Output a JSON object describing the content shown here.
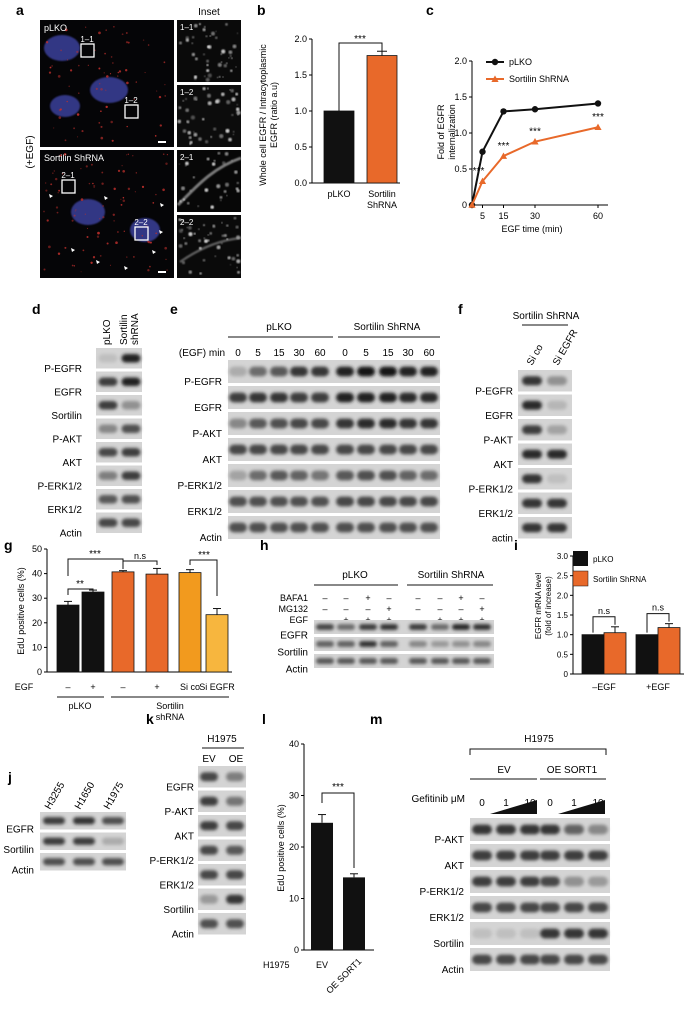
{
  "panel_letters": {
    "a": "a",
    "b": "b",
    "c": "c",
    "d": "d",
    "e": "e",
    "f": "f",
    "g": "g",
    "h": "h",
    "i": "i",
    "j": "j",
    "k": "k",
    "l": "l",
    "m": "m"
  },
  "panel_a": {
    "inset_title": "Inset",
    "treatment": "(+EGF)",
    "top_label": "pLKO",
    "bottom_label": "Sortilin ShRNA",
    "boxes": [
      "1–1",
      "1–2",
      "2–1",
      "2–2"
    ],
    "insets": [
      "1–1",
      "1–2",
      "2–1",
      "2–2"
    ]
  },
  "chart_data": [
    {
      "id": "b",
      "type": "bar",
      "categories": [
        "pLKO",
        "Sortilin\nShRNA"
      ],
      "category_lines": [
        [
          "pLKO"
        ],
        [
          "Sortilin",
          "ShRNA"
        ]
      ],
      "values": [
        1.0,
        1.77
      ],
      "errors": [
        0,
        0.06
      ],
      "colors": [
        "#111111",
        "#e8692a"
      ],
      "ylabel_lines": [
        "Whole cell EGFR / Intracytoplasmic",
        "EGFR (ratio a.u)"
      ],
      "ylim": [
        0,
        2.0
      ],
      "yticks": [
        "0.0",
        "0.5",
        "1.0",
        "1.5",
        "2.0"
      ],
      "significance": "***"
    },
    {
      "id": "c",
      "type": "line",
      "x": [
        0,
        5,
        15,
        30,
        60
      ],
      "xticks": [
        "5",
        "15",
        "30",
        "60"
      ],
      "xlabel": "EGF time (min)",
      "ylabel_lines": [
        "Fold of EGFR",
        "internalization"
      ],
      "ylim": [
        0,
        2.0
      ],
      "yticks": [
        "0",
        "0.5",
        "1.0",
        "1.5",
        "2.0"
      ],
      "series": [
        {
          "name": "pLKO",
          "values": [
            0,
            0.74,
            1.3,
            1.33,
            1.41
          ],
          "color": "#111111",
          "marker": "circle"
        },
        {
          "name": "Sortilin ShRNA",
          "values": [
            0,
            0.33,
            0.68,
            0.88,
            1.08
          ],
          "color": "#e8692a",
          "marker": "triangle"
        }
      ],
      "significance": [
        "***",
        "***",
        "***",
        "***"
      ],
      "legend_position": "top-left"
    },
    {
      "id": "g",
      "type": "bar",
      "categories": [
        "–",
        "+",
        "–",
        "+",
        "Si co",
        "Si EGFR"
      ],
      "values": [
        27.2,
        32.5,
        40.7,
        39.8,
        40.4,
        23.3
      ],
      "errors": [
        1.5,
        0.8,
        0.5,
        2.3,
        1.2,
        2.5
      ],
      "colors": [
        "#111111",
        "#111111",
        "#e8692a",
        "#e8692a",
        "#f29a1e",
        "#f7b63e"
      ],
      "ylabel": "EdU positive cells (%)",
      "ylim": [
        0,
        50
      ],
      "yticks": [
        "0",
        "10",
        "20",
        "30",
        "40",
        "50"
      ],
      "row_label": "EGF",
      "groups": [
        [
          "pLKO"
        ],
        [
          "Sortilin",
          "shRNA"
        ]
      ],
      "brackets": [
        "***",
        "**",
        "n.s",
        "***"
      ]
    },
    {
      "id": "i",
      "type": "bar",
      "categories": [
        "–EGF",
        "+EGF"
      ],
      "series": [
        {
          "name": "pLKO",
          "values": [
            1.0,
            1.0
          ],
          "errors": [
            0,
            0
          ],
          "color": "#111111"
        },
        {
          "name": "Sortilin ShRNA",
          "values": [
            1.05,
            1.18
          ],
          "errors": [
            0.15,
            0.1
          ],
          "color": "#e8692a"
        }
      ],
      "ylabel_lines": [
        "EGFR mRNA level",
        "(fold of increase)"
      ],
      "ylim": [
        0,
        3.0
      ],
      "yticks": [
        "0",
        "0.5",
        "1.0",
        "1.5",
        "2.0",
        "2.5",
        "3.0"
      ],
      "significance": [
        "n.s",
        "n.s"
      ],
      "legend_position": "top-left"
    },
    {
      "id": "l",
      "type": "bar",
      "categories": [
        "EV",
        "OE SORT1"
      ],
      "values": [
        24.7,
        14.1
      ],
      "errors": [
        1.6,
        0.7
      ],
      "colors": [
        "#111111",
        "#111111"
      ],
      "ylabel": "EdU positive cells (%)",
      "ylim": [
        0,
        40
      ],
      "yticks": [
        "0",
        "10",
        "20",
        "30",
        "40"
      ],
      "row_label": "H1975",
      "significance": "***"
    }
  ],
  "blots": {
    "d": {
      "lanes": [
        "pLKO",
        "Sortilin shRNA"
      ],
      "lane_lines": [
        [
          "pLKO"
        ],
        [
          "Sortilin",
          "shRNA"
        ]
      ],
      "rows": [
        "P-EGFR",
        "EGFR",
        "Sortilin",
        "P-AKT",
        "AKT",
        "P-ERK1/2",
        "ERK1/2",
        "Actin"
      ]
    },
    "e": {
      "groups": [
        "pLKO",
        "Sortilin ShRNA"
      ],
      "time_label": "(EGF) min",
      "times": [
        "0",
        "5",
        "15",
        "30",
        "60",
        "0",
        "5",
        "15",
        "30",
        "60"
      ],
      "rows": [
        "P-EGFR",
        "EGFR",
        "P-AKT",
        "AKT",
        "P-ERK1/2",
        "ERK1/2",
        "Actin"
      ]
    },
    "f": {
      "group": "Sortilin ShRNA",
      "lanes": [
        "Si co",
        "Si EGFR"
      ],
      "rows": [
        "P-EGFR",
        "EGFR",
        "P-AKT",
        "AKT",
        "P-ERK1/2",
        "ERK1/2",
        "actin"
      ]
    },
    "h": {
      "groups": [
        "pLKO",
        "Sortilin ShRNA"
      ],
      "treatments": [
        {
          "label": "BAFA1",
          "values": [
            "–",
            "–",
            "+",
            "–",
            "–",
            "–",
            "+",
            "–"
          ]
        },
        {
          "label": "MG132",
          "values": [
            "–",
            "–",
            "–",
            "+",
            "–",
            "–",
            "–",
            "+"
          ]
        },
        {
          "label": "EGF",
          "values": [
            "–",
            "+",
            "+",
            "+",
            "–",
            "+",
            "+",
            "+"
          ]
        }
      ],
      "rows": [
        "EGFR",
        "Sortilin",
        "Actin"
      ]
    },
    "j": {
      "lanes": [
        "H3255",
        "H1650",
        "H1975"
      ],
      "rows": [
        "EGFR",
        "Sortilin",
        "Actin"
      ]
    },
    "k": {
      "group": "H1975",
      "lanes": [
        "EV",
        "OE"
      ],
      "rows": [
        "EGFR",
        "P-AKT",
        "AKT",
        "P-ERK1/2",
        "ERK1/2",
        "Sortilin",
        "Actin"
      ]
    },
    "m": {
      "top": "H1975",
      "groups": [
        "EV",
        "OE SORT1"
      ],
      "dose_label": "Gefitinib μM",
      "doses": [
        "0",
        "1",
        "10",
        "0",
        "1",
        "10"
      ],
      "rows": [
        "P-AKT",
        "AKT",
        "P-ERK1/2",
        "ERK1/2",
        "Sortilin",
        "Actin"
      ]
    }
  }
}
